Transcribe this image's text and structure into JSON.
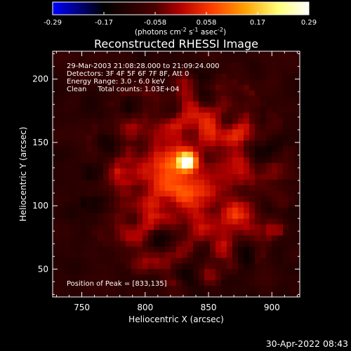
{
  "colorbar": {
    "ticks": [
      "-0.29",
      "-0.17",
      "-0.058",
      "0.058",
      "0.17",
      "0.29"
    ],
    "unit_label_parts": [
      "(photons cm",
      "-2",
      " s",
      "-1",
      " asec",
      "-2",
      ")"
    ],
    "colors": [
      "#0000ff",
      "#000000",
      "#4a0000",
      "#b40000",
      "#ff3c00",
      "#ffa000",
      "#ffff78",
      "#ffffff"
    ]
  },
  "chart_data": {
    "type": "heatmap",
    "title": "Reconstructed RHESSI Image",
    "xlabel": "Heliocentric X (arcsec)",
    "ylabel": "Heliocentric Y (arcsec)",
    "xlim": [
      727,
      922
    ],
    "ylim": [
      28,
      222
    ],
    "xticks": [
      750,
      800,
      850,
      900
    ],
    "yticks": [
      50,
      100,
      150,
      200
    ],
    "peak_position": [
      833,
      135
    ],
    "vmin": -0.29,
    "vmax": 0.29,
    "info_lines": [
      "29-Mar-2003 21:08:28.000 to 21:09:24.000",
      "Detectors: 3F 4F 5F 6F 7F 8F, Att 0",
      "Energy Range: 3.0 - 6.0 keV",
      "Clean     Total counts: 1.03E+04"
    ],
    "peak_label": "Position of Peak = [833,135]"
  },
  "footer": {
    "timestamp": "30-Apr-2022 08:43"
  }
}
